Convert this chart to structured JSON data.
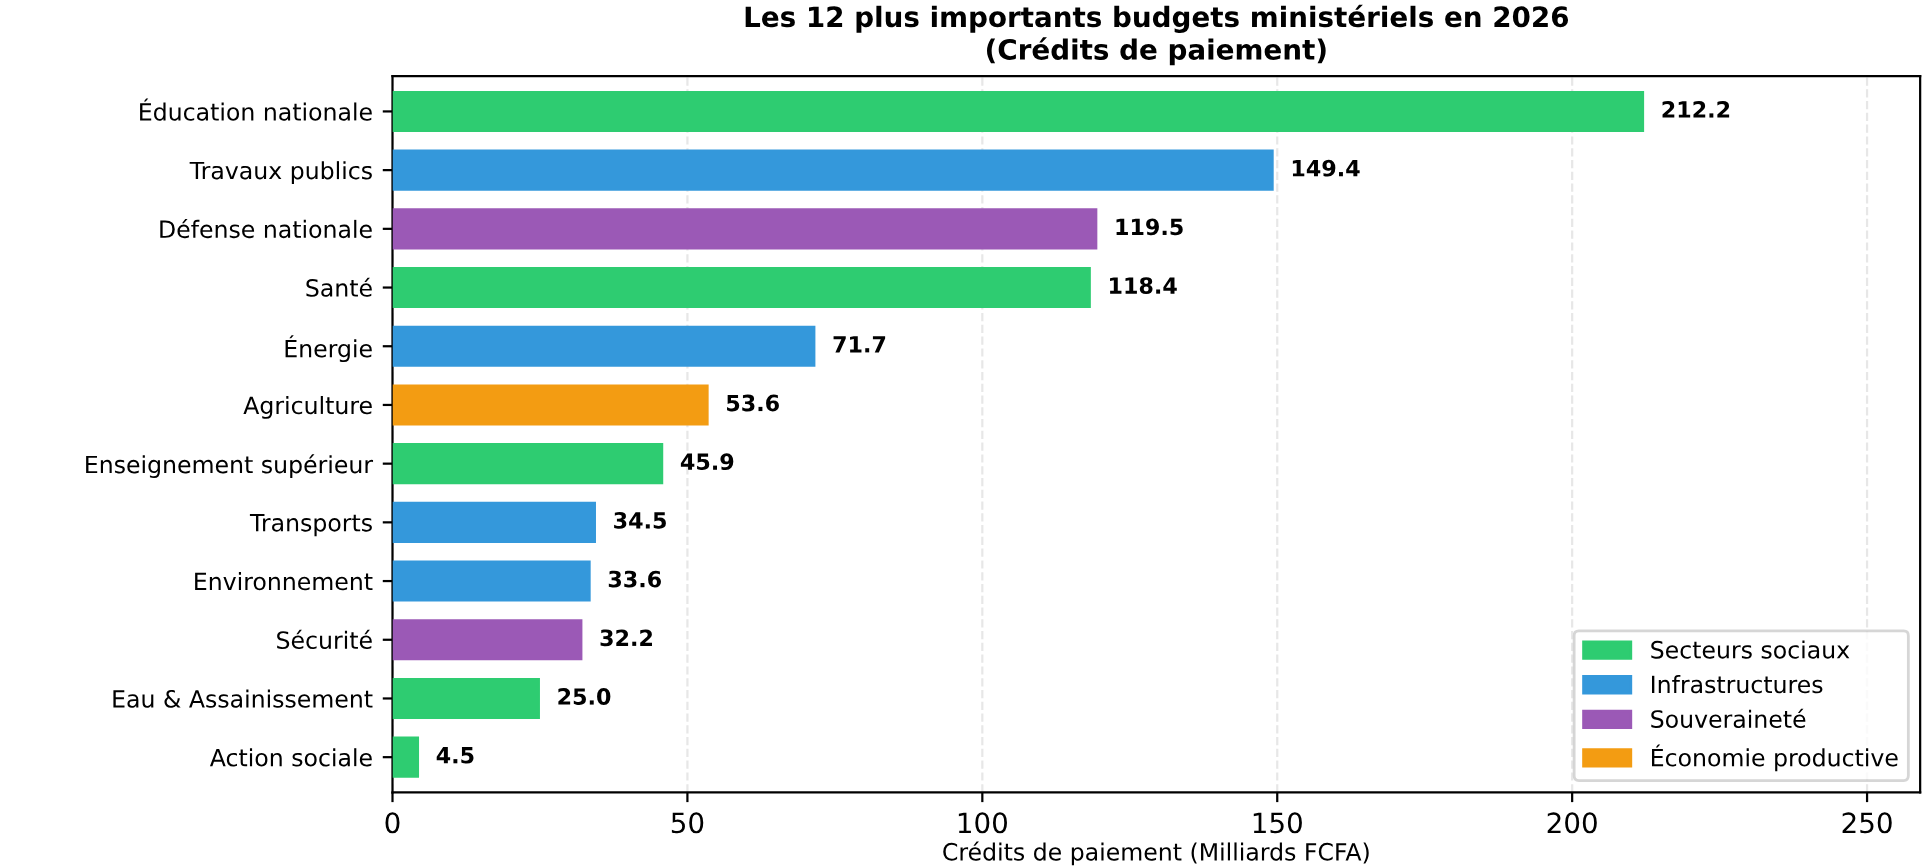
{
  "chart_data": {
    "type": "bar",
    "orientation": "horizontal",
    "title": "Les 12 plus importants budgets ministériels en 2026\n(Crédits de paiement)",
    "xlabel": "Crédits de paiement (Milliards FCFA)",
    "categories": [
      "Éducation nationale",
      "Travaux publics",
      "Défense nationale",
      "Santé",
      "Énergie",
      "Agriculture",
      "Enseignement supérieur",
      "Transports",
      "Environnement",
      "Sécurité",
      "Eau & Assainissement",
      "Action sociale"
    ],
    "series": [
      {
        "name": "Secteurs sociaux",
        "color": "#2ecc71",
        "values": [
          212.2,
          null,
          null,
          118.4,
          null,
          null,
          45.9,
          null,
          null,
          null,
          25.0,
          4.5
        ],
        "value_labels": [
          "212.2",
          null,
          null,
          "118.4",
          null,
          null,
          "45.9",
          null,
          null,
          null,
          "25.0",
          "4.5"
        ]
      },
      {
        "name": "Infrastructures",
        "color": "#3498db",
        "values": [
          null,
          149.4,
          null,
          null,
          71.7,
          null,
          null,
          34.5,
          33.6,
          null,
          null,
          null
        ]
      },
      {
        "name": "Souveraineté",
        "color": "#9b59b6",
        "values": [
          null,
          null,
          119.5,
          null,
          null,
          null,
          null,
          null,
          null,
          32.2,
          null,
          null
        ]
      },
      {
        "name": "Économie productive",
        "color": "#f39c12",
        "values": [
          null,
          null,
          null,
          null,
          null,
          53.6,
          null,
          null,
          null,
          null,
          null,
          null
        ]
      }
    ],
    "xlim": [
      0,
      259
    ],
    "xticks": [
      0,
      50,
      100,
      150,
      200,
      250
    ],
    "grid": "x",
    "legend": "bottom right",
    "data_labels": true
  }
}
